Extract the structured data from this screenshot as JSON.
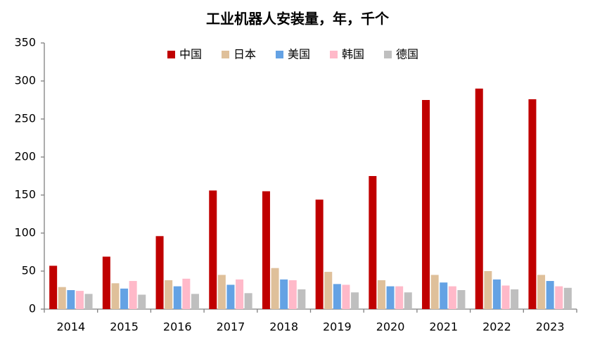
{
  "chart_data": {
    "type": "bar",
    "title": "工业机器人安装量，年，千个",
    "categories": [
      "2014",
      "2015",
      "2016",
      "2017",
      "2018",
      "2019",
      "2020",
      "2021",
      "2022",
      "2023"
    ],
    "series": [
      {
        "name": "中国",
        "color": "#c00000",
        "values": [
          57,
          69,
          96,
          156,
          155,
          144,
          175,
          275,
          290,
          276
        ]
      },
      {
        "name": "日本",
        "color": "#dfc09a",
        "values": [
          29,
          34,
          38,
          45,
          54,
          49,
          38,
          45,
          50,
          45
        ]
      },
      {
        "name": "美国",
        "color": "#64a2e4",
        "values": [
          25,
          27,
          30,
          32,
          39,
          33,
          30,
          35,
          39,
          37
        ]
      },
      {
        "name": "韩国",
        "color": "#ffb9c9",
        "values": [
          24,
          37,
          40,
          39,
          38,
          32,
          30,
          30,
          31,
          30
        ]
      },
      {
        "name": "德国",
        "color": "#bfbfbf",
        "values": [
          20,
          19,
          20,
          21,
          26,
          22,
          22,
          25,
          26,
          28
        ]
      }
    ],
    "ylim": [
      0,
      350
    ],
    "yticks": [
      0,
      50,
      100,
      150,
      200,
      250,
      300,
      350
    ],
    "grid": false,
    "legend": "top"
  }
}
